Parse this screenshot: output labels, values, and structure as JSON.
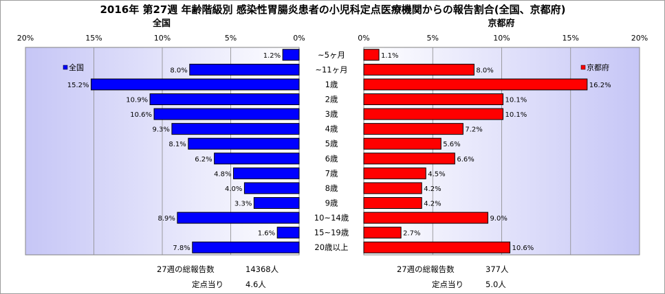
{
  "title": "2016年 第27週 年齢階級別 感染性胃腸炎患者の小児科定点医療機関からの報告割合(全国、京都府)",
  "colors": {
    "national": "#0000ff",
    "kyoto": "#ff0000",
    "plot_bg": "#ccccff"
  },
  "footer": {
    "national_total_label": "27週の総報告数",
    "national_total_value": "14368人",
    "national_per_label": "定点当り",
    "national_per_value": "4.6人",
    "kyoto_total_label": "27週の総報告数",
    "kyoto_total_value": "377人",
    "kyoto_per_label": "定点当り",
    "kyoto_per_value": "5.0人"
  },
  "chart_data": [
    {
      "type": "bar",
      "orientation": "horizontal",
      "direction": "right-to-left",
      "panel_title": "全国",
      "legend": "全国",
      "legend_position": "top-left",
      "categories": [
        "~5ヶ月",
        "~11ヶ月",
        "1歳",
        "2歳",
        "3歳",
        "4歳",
        "5歳",
        "6歳",
        "7歳",
        "8歳",
        "9歳",
        "10~14歳",
        "15~19歳",
        "20歳以上"
      ],
      "values": [
        1.2,
        8.0,
        15.2,
        10.9,
        10.6,
        9.3,
        8.1,
        6.2,
        4.8,
        4.0,
        3.3,
        8.9,
        1.6,
        7.8
      ],
      "value_labels": [
        "1.2%",
        "8.0%",
        "15.2%",
        "10.9%",
        "10.6%",
        "9.3%",
        "8.1%",
        "6.2%",
        "4.8%",
        "4.0%",
        "3.3%",
        "8.9%",
        "1.6%",
        "7.8%"
      ],
      "xlim": [
        0,
        20
      ],
      "ticks": [
        "20%",
        "15%",
        "10%",
        "5%",
        "0%"
      ],
      "grid": true
    },
    {
      "type": "bar",
      "orientation": "horizontal",
      "direction": "left-to-right",
      "panel_title": "京都府",
      "legend": "京都府",
      "legend_position": "top-right",
      "categories": [
        "~5ヶ月",
        "~11ヶ月",
        "1歳",
        "2歳",
        "3歳",
        "4歳",
        "5歳",
        "6歳",
        "7歳",
        "8歳",
        "9歳",
        "10~14歳",
        "15~19歳",
        "20歳以上"
      ],
      "values": [
        1.1,
        8.0,
        16.2,
        10.1,
        10.1,
        7.2,
        5.6,
        6.6,
        4.5,
        4.2,
        4.2,
        9.0,
        2.7,
        10.6
      ],
      "value_labels": [
        "1.1%",
        "8.0%",
        "16.2%",
        "10.1%",
        "10.1%",
        "7.2%",
        "5.6%",
        "6.6%",
        "4.5%",
        "4.2%",
        "4.2%",
        "9.0%",
        "2.7%",
        "10.6%"
      ],
      "xlim": [
        0,
        20
      ],
      "ticks": [
        "0%",
        "5%",
        "10%",
        "15%",
        "20%"
      ],
      "grid": true
    }
  ]
}
